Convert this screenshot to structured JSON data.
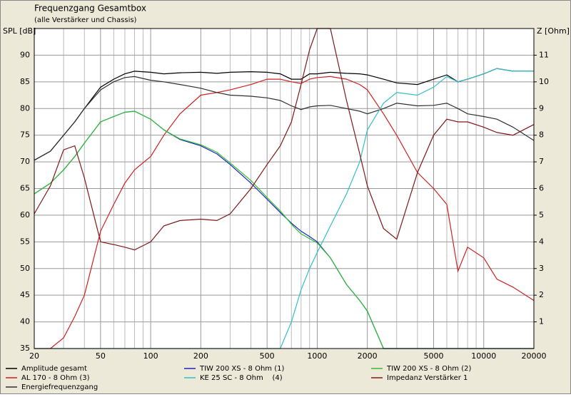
{
  "chart_data": {
    "type": "line",
    "title": "Frequenzgang Gesamtbox",
    "subtitle": "(alle Verstärker und Chassis)",
    "y_label": "SPL [dB]",
    "y2_label": "Z [Ohm]",
    "xscale": "log",
    "grid": true,
    "legend": "bottom",
    "xlim": [
      20,
      20000
    ],
    "xticks": [
      20,
      50,
      100,
      200,
      500,
      1000,
      2000,
      5000,
      10000,
      20000
    ],
    "xgrid_minor": [
      30,
      40,
      60,
      70,
      80,
      90,
      300,
      400,
      600,
      700,
      800,
      900,
      3000,
      4000,
      6000,
      7000,
      8000,
      9000
    ],
    "ylim": [
      35,
      95
    ],
    "yticks": [
      35,
      40,
      45,
      50,
      55,
      60,
      65,
      70,
      75,
      80,
      85,
      90
    ],
    "y2lim": [
      0,
      12
    ],
    "y2ticks": [
      1,
      2,
      3,
      4,
      5,
      6,
      7,
      8,
      9,
      10,
      11
    ],
    "x": [
      20,
      25,
      30,
      35,
      40,
      50,
      60,
      70,
      80,
      100,
      120,
      150,
      200,
      250,
      300,
      400,
      500,
      600,
      700,
      800,
      900,
      1000,
      1200,
      1500,
      1800,
      2000,
      2500,
      3000,
      4000,
      5000,
      6000,
      7000,
      8000,
      10000,
      12000,
      15000,
      20000
    ],
    "series": [
      {
        "name": "Amplitude gesamt",
        "color": "#000000",
        "values": [
          70.3,
          72,
          75,
          77.5,
          80,
          84,
          85.5,
          86.5,
          87,
          86.8,
          86.5,
          86.7,
          86.8,
          86.6,
          86.8,
          86.9,
          86.8,
          86.5,
          85.5,
          85.5,
          86.5,
          86.5,
          86.8,
          86.6,
          86.5,
          86.3,
          85.5,
          84.8,
          84.5,
          85.5,
          86.3,
          85,
          85.5,
          86.5,
          87.5,
          87,
          87
        ]
      },
      {
        "name": "AL 170 - 8 Ohm (3)",
        "color": "#d02020",
        "values": [
          35,
          35,
          37,
          41,
          45,
          57,
          62,
          66,
          68.5,
          71,
          75,
          79,
          82.5,
          83,
          83.5,
          84.5,
          85.5,
          85.5,
          85,
          84.7,
          85.5,
          85.8,
          86,
          85.5,
          84.5,
          83.5,
          79,
          75,
          68,
          65,
          62,
          49.5,
          54,
          52,
          48,
          46.5,
          44
        ]
      },
      {
        "name": "Energiefrequenzgang",
        "color": "#303030",
        "values": [
          70.3,
          72,
          75,
          77.5,
          80,
          83.5,
          85,
          85.8,
          86,
          85.3,
          85,
          84.5,
          83.8,
          83,
          82.5,
          82.3,
          82,
          81.5,
          80.5,
          79.8,
          80.3,
          80.5,
          80.6,
          80,
          79.5,
          79,
          80,
          81,
          80.5,
          80.6,
          81,
          80,
          79,
          78.5,
          78,
          76.5,
          74
        ]
      },
      {
        "name": "TIW 200 XS - 8 Ohm (1)",
        "color": "#2020c8",
        "values": [
          64,
          66,
          68.5,
          71,
          73.5,
          77.5,
          78.5,
          79.3,
          79.5,
          78,
          76,
          74.2,
          73,
          71.5,
          69.5,
          66,
          63,
          60.5,
          58.5,
          57,
          56,
          55,
          52,
          47,
          44,
          42,
          35,
          35,
          35,
          35,
          35,
          35,
          35,
          35,
          35,
          35,
          35
        ]
      },
      {
        "name": "KE 25 SC - 8 Ohm    (4)",
        "color": "#30c0c8",
        "values": [
          35,
          35,
          35,
          35,
          35,
          35,
          35,
          35,
          35,
          35,
          35,
          35,
          35,
          35,
          35,
          35,
          35,
          35,
          40,
          46,
          50,
          53,
          58,
          64,
          70,
          76,
          81,
          83,
          82.5,
          84,
          86,
          85,
          85.5,
          86.5,
          87.5,
          87,
          87
        ]
      },
      {
        "name": "TIW 200 XS - 8 Ohm (2)",
        "color": "#30c030",
        "values": [
          64,
          66,
          68.5,
          71,
          73.5,
          77.5,
          78.5,
          79.3,
          79.5,
          78,
          76,
          74.3,
          73.2,
          71.8,
          69.8,
          66.5,
          63.3,
          60.8,
          58.3,
          56.5,
          55.6,
          54.8,
          52,
          47,
          44,
          42,
          35,
          35,
          35,
          35,
          35,
          35,
          35,
          35,
          35,
          35,
          35
        ]
      },
      {
        "name": "Impedanz Verstärker 1",
        "color": "#801818",
        "axis": "y2",
        "values": [
          5.05,
          6.1,
          7.45,
          7.6,
          6.4,
          4,
          3.9,
          3.8,
          3.7,
          4,
          4.6,
          4.8,
          4.85,
          4.8,
          5.05,
          6,
          6.9,
          7.6,
          8.5,
          9.9,
          11.2,
          12,
          12,
          9.3,
          7.3,
          6.1,
          4.5,
          4.1,
          6.6,
          8,
          8.6,
          8.5,
          8.5,
          8.3,
          8.1,
          8,
          8.4
        ]
      }
    ]
  }
}
